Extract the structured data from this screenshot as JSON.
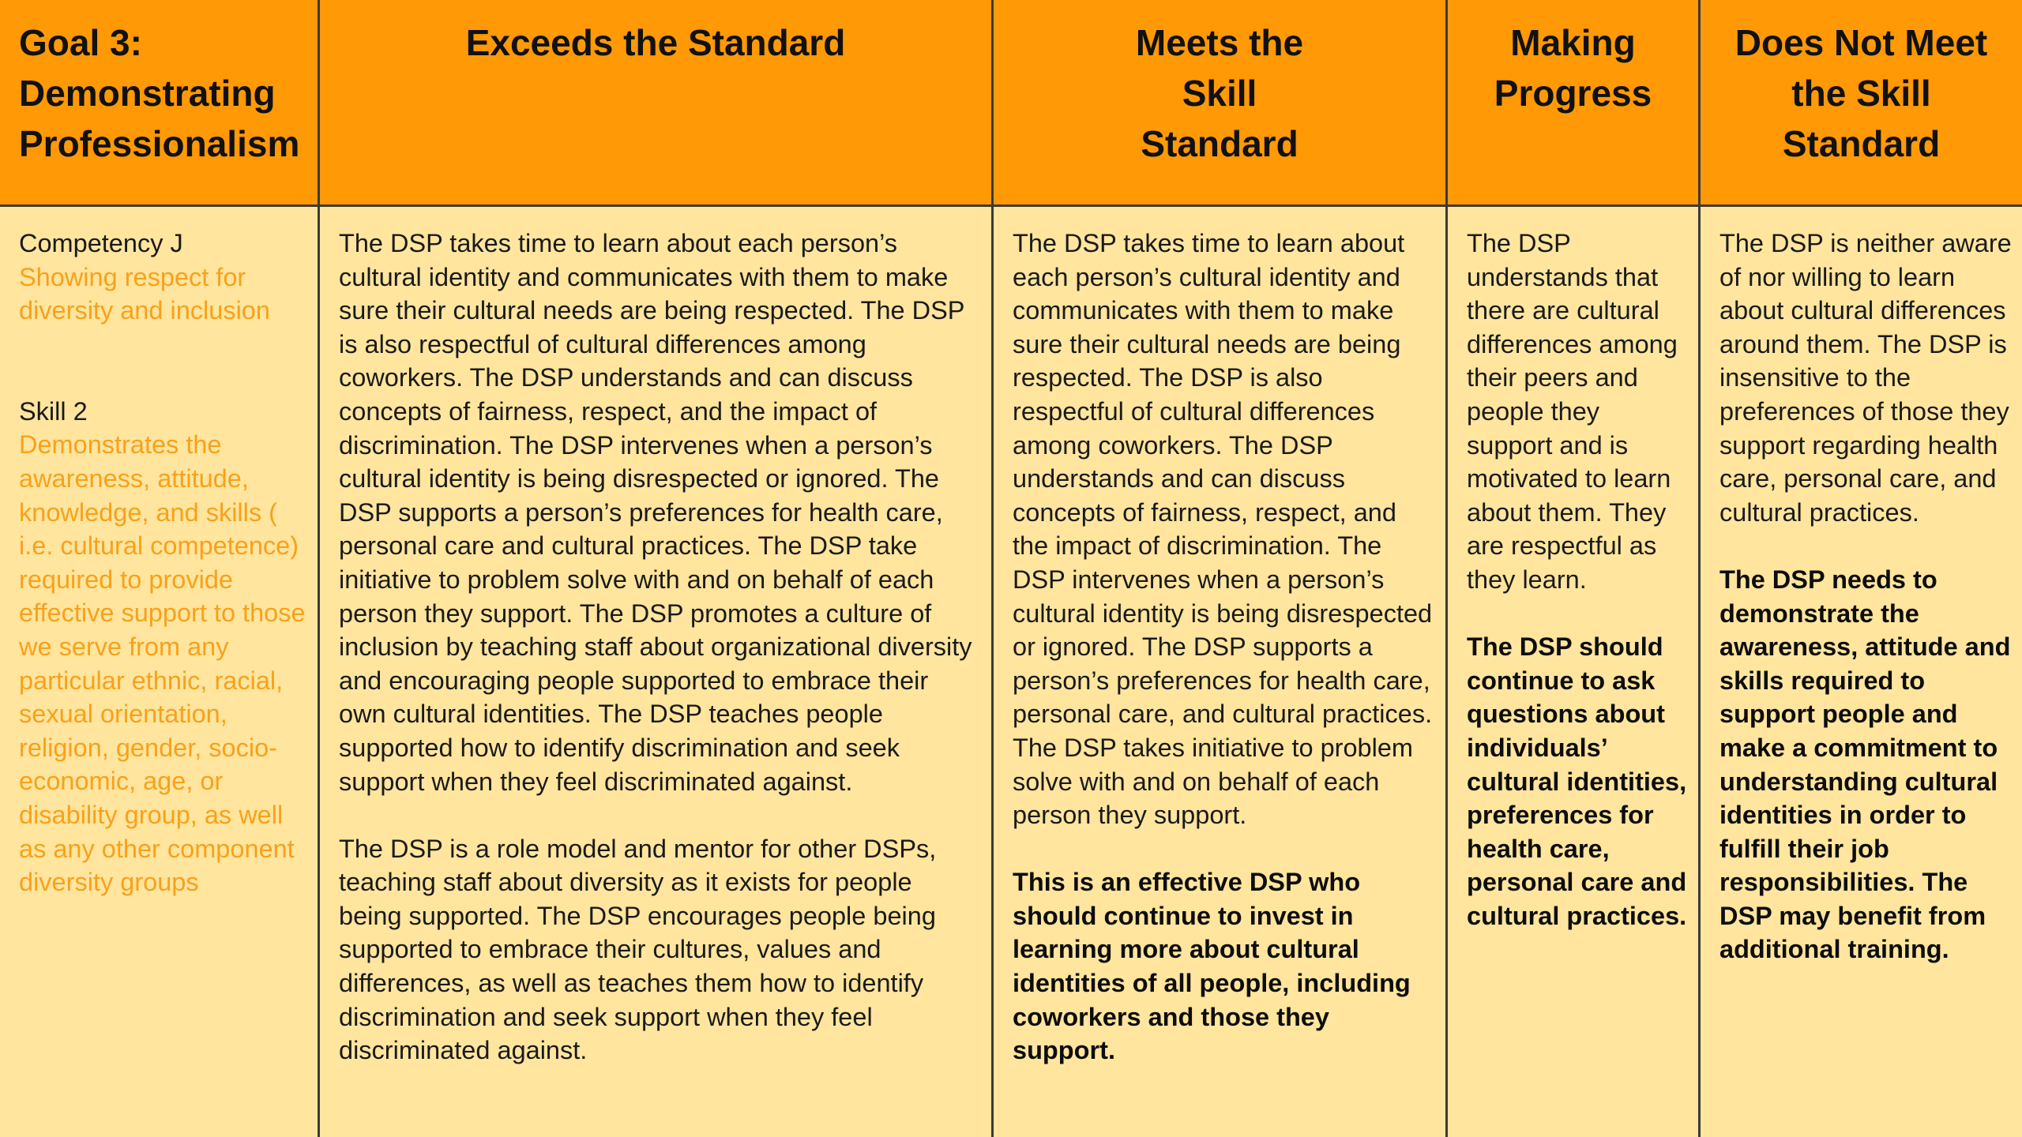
{
  "header": {
    "goal": [
      "Goal 3:",
      "Demonstrating",
      "Professionalism"
    ],
    "exceeds": [
      "Exceeds the Standard"
    ],
    "meets": [
      "Meets the",
      "Skill",
      "Standard"
    ],
    "making_progress": [
      "Making",
      "Progress"
    ],
    "does_not_meet": [
      "Does Not Meet",
      "the Skill",
      "Standard"
    ]
  },
  "goal_column": {
    "competency_label": "Competency J",
    "competency_text": "Showing respect for diversity and inclusion",
    "skill_label": "Skill 2",
    "skill_text": "Demonstrates the awareness, attitude, knowledge, and skills ( i.e. cultural competence) required to provide effective support to those we serve from any particular ethnic, racial, sexual orientation, religion, gender, socio-economic, age, or disability group, as well as any other component diversity groups"
  },
  "exceeds_column": {
    "paragraph_1": "The DSP takes time to learn about each person’s cultural identity and communicates with them to make sure their cultural needs are being respected. The DSP is also respectful of cultural differences among coworkers. The DSP understands and can discuss concepts of fairness, respect, and the impact of discrimination. The DSP intervenes when a person’s cultural identity is being disrespected or ignored. The DSP supports a person’s preferences for health care, personal care and cultural practices. The DSP take initiative to problem solve with and on behalf of each person they support. The DSP promotes a culture of inclusion by teaching staff about organizational diversity and encouraging people supported to embrace their own cultural identities. The DSP teaches people supported how to identify discrimination and seek support when they feel discriminated against.",
    "paragraph_2": "The DSP is a role model and mentor for other DSPs, teaching staff about diversity as it exists for people being supported.  The DSP encourages people being supported to embrace their cultures, values and differences, as well as teaches them how to identify discrimination and seek support when they feel discriminated against."
  },
  "meets_column": {
    "paragraph_1": "The DSP takes time to learn about each person’s cultural identity and communicates with them to make sure their cultural needs are being respected. The DSP is also respectful of cultural differences among coworkers. The DSP understands and can discuss concepts of fairness, respect, and the impact of discrimination. The DSP intervenes when a person’s cultural identity is being disrespected or ignored. The DSP supports a person’s preferences for health care, personal care, and cultural practices. The DSP takes initiative to problem solve with and on behalf of each person they support.",
    "summary": "This is an effective DSP who should continue to invest in learning more about cultural identities of all people, including coworkers and those they support."
  },
  "progress_column": {
    "paragraph_1": "The DSP understands that there are cultural differences among their peers and people they support and is motivated to learn about them. They are respectful as they learn.",
    "summary": "The DSP should continue to ask questions about individuals’ cultural identities, preferences for health care, personal care and cultural practices."
  },
  "not_meet_column": {
    "paragraph_1": "The DSP is neither aware of nor willing to learn about cultural differences around them. The DSP is insensitive to the preferences of those they support regarding health care, personal care, and cultural practices.",
    "summary": "The DSP needs to demonstrate the awareness, attitude and skills required to support people and make a commitment to understanding cultural identities in order to fulfill their job responsibilities. The DSP may benefit from additional training."
  },
  "colors": {
    "header_bg": "#ff9906",
    "body_bg": "#ffe59e",
    "accent_text": "#f8a11a",
    "grid_line": "#3a3a3a"
  }
}
